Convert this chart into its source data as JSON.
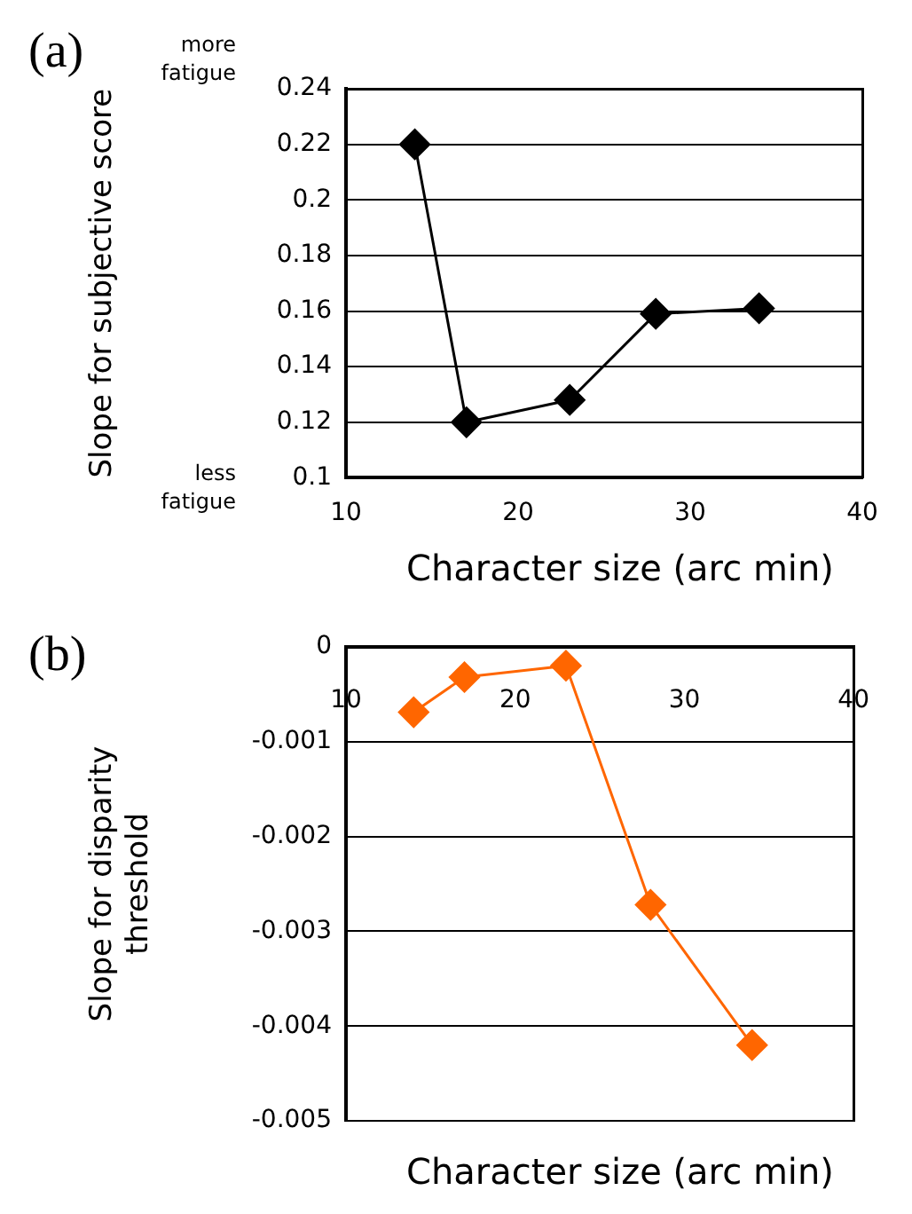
{
  "chart_data": [
    {
      "type": "line",
      "title": "(a)",
      "xlabel": "Character size (arc min)",
      "ylabel": "Slope for subjective score",
      "annotations": [
        "more fatigue",
        "less fatigue"
      ],
      "x": [
        14,
        17,
        23,
        28,
        34
      ],
      "series": [
        {
          "color": "#000000",
          "values": [
            0.22,
            0.12,
            0.128,
            0.159,
            0.161
          ]
        }
      ],
      "xlim": [
        10,
        40
      ],
      "xticks": [
        10,
        20,
        30,
        40
      ],
      "ylim": [
        0.1,
        0.24
      ],
      "yticks": [
        0.1,
        0.12,
        0.14,
        0.16,
        0.18,
        0.2,
        0.22,
        0.24
      ],
      "grid": "y",
      "legend": false,
      "marker": "diamond",
      "line_style": "solid"
    },
    {
      "type": "line",
      "title": "(b)",
      "xlabel": "Character size (arc min)",
      "ylabel": "Slope for disparity threshold",
      "x": [
        14,
        17,
        23,
        28,
        34
      ],
      "series": [
        {
          "color": "#ff6600",
          "values": [
            -0.00069,
            -0.00032,
            -0.0002,
            -0.00272,
            -0.0042
          ]
        }
      ],
      "xlim": [
        10,
        40
      ],
      "xticks": [
        10,
        20,
        30,
        40
      ],
      "ylim": [
        -0.005,
        0
      ],
      "yticks": [
        -0.005,
        -0.004,
        -0.003,
        -0.002,
        -0.001,
        0
      ],
      "grid": "y",
      "legend": false,
      "marker": "diamond",
      "line_style": "solid"
    }
  ]
}
